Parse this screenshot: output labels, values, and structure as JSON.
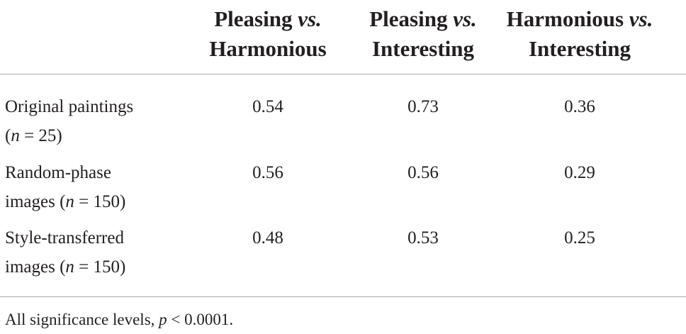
{
  "table": {
    "headers": [
      {
        "line1": "Pleasing",
        "em": "vs.",
        "line2": "Harmonious"
      },
      {
        "line1": "Pleasing",
        "em": "vs.",
        "line2": "Interesting"
      },
      {
        "line1": "Harmonious",
        "em": "vs.",
        "line2": "Interesting"
      }
    ],
    "rows": [
      {
        "label": {
          "line1": "Original paintings",
          "before": "(",
          "em": "n",
          "after": " = 25)"
        },
        "values": [
          0.54,
          0.73,
          0.36
        ]
      },
      {
        "label": {
          "line1": "Random-phase",
          "before": "images (",
          "em": "n",
          "after": " = 150)"
        },
        "values": [
          0.56,
          0.56,
          0.29
        ]
      },
      {
        "label": {
          "line1": "Style-transferred",
          "before": "images (",
          "em": "n",
          "after": " = 150)"
        },
        "values": [
          0.48,
          0.53,
          0.25
        ]
      }
    ],
    "footnote": {
      "before": "All significance levels, ",
      "em": "p",
      "after": " < 0.0001."
    }
  }
}
